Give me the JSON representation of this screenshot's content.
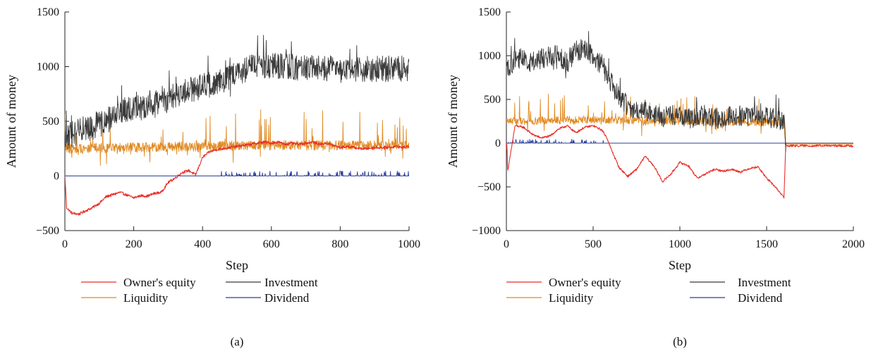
{
  "figure": {
    "panels": [
      "(a)",
      "(b)"
    ]
  },
  "chart_data": [
    {
      "type": "line",
      "panel_label": "(a)",
      "xlabel": "Step",
      "ylabel": "Amount of money",
      "xlim": [
        0,
        1000
      ],
      "ylim": [
        -500,
        1500
      ],
      "xticks": [
        0,
        200,
        400,
        600,
        800,
        1000
      ],
      "yticks": [
        -500,
        0,
        500,
        1000,
        1500
      ],
      "ytick_labels": [
        "−500",
        "0",
        "500",
        "1000",
        "1500"
      ],
      "legend_position": "bottom",
      "series": [
        {
          "name": "Owner's equity",
          "color": "#e8302a",
          "x": [
            0,
            5,
            20,
            40,
            60,
            80,
            100,
            120,
            140,
            160,
            180,
            200,
            220,
            240,
            260,
            280,
            300,
            320,
            340,
            360,
            380,
            400,
            420,
            440,
            460,
            480,
            500,
            520,
            540,
            560,
            580,
            600,
            620,
            640,
            660,
            680,
            700,
            720,
            740,
            760,
            780,
            800,
            820,
            840,
            860,
            880,
            900,
            920,
            940,
            960,
            980,
            1000
          ],
          "y": [
            0,
            -290,
            -340,
            -350,
            -320,
            -290,
            -250,
            -190,
            -170,
            -150,
            -175,
            -200,
            -180,
            -185,
            -160,
            -150,
            -60,
            -20,
            30,
            50,
            10,
            170,
            220,
            240,
            250,
            260,
            270,
            280,
            290,
            300,
            310,
            300,
            310,
            290,
            300,
            290,
            300,
            310,
            290,
            300,
            280,
            260,
            270,
            260,
            250,
            250,
            260,
            260,
            260,
            270,
            260,
            270
          ]
        },
        {
          "name": "Liquidity",
          "color": "#e08a22",
          "x": [
            0,
            200,
            400,
            600,
            800,
            1000
          ],
          "y": [
            250,
            260,
            270,
            280,
            280,
            275
          ]
        },
        {
          "name": "Investment",
          "color": "#3a3a3a",
          "x": [
            0,
            50,
            100,
            150,
            200,
            250,
            300,
            350,
            400,
            450,
            500,
            550,
            600,
            650,
            700,
            750,
            800,
            850,
            900,
            950,
            1000
          ],
          "y": [
            350,
            420,
            470,
            560,
            620,
            640,
            700,
            780,
            820,
            860,
            950,
            1000,
            1010,
            1000,
            990,
            990,
            970,
            980,
            980,
            980,
            990
          ]
        },
        {
          "name": "Dividend",
          "color": "#2a3f9a",
          "x": [
            0,
            200,
            440,
            600,
            800,
            1000
          ],
          "y": [
            0,
            0,
            0,
            0,
            0,
            0
          ]
        }
      ]
    },
    {
      "type": "line",
      "panel_label": "(b)",
      "xlabel": "Step",
      "ylabel": "Amount of money",
      "xlim": [
        0,
        2000
      ],
      "ylim": [
        -1000,
        1500
      ],
      "xticks": [
        0,
        500,
        1000,
        1500,
        2000
      ],
      "yticks": [
        -1000,
        -500,
        0,
        500,
        1000,
        1500
      ],
      "ytick_labels": [
        "−1000",
        "−500",
        "0",
        "500",
        "1000",
        "1500"
      ],
      "legend_position": "bottom",
      "series": [
        {
          "name": "Owner's equity",
          "color": "#e8302a",
          "x": [
            0,
            10,
            50,
            100,
            150,
            200,
            250,
            300,
            350,
            400,
            450,
            500,
            550,
            580,
            600,
            650,
            700,
            750,
            800,
            850,
            900,
            950,
            1000,
            1050,
            1100,
            1150,
            1200,
            1250,
            1300,
            1350,
            1400,
            1450,
            1500,
            1550,
            1600,
            1610,
            1700,
            1800,
            1900,
            2000
          ],
          "y": [
            0,
            -300,
            200,
            180,
            100,
            60,
            80,
            160,
            200,
            120,
            180,
            200,
            150,
            60,
            -50,
            -280,
            -380,
            -300,
            -150,
            -260,
            -440,
            -350,
            -220,
            -260,
            -400,
            -350,
            -300,
            -320,
            -300,
            -330,
            -290,
            -270,
            -400,
            -500,
            -620,
            -30,
            -30,
            -30,
            -30,
            -30
          ]
        },
        {
          "name": "Liquidity",
          "color": "#e08a22",
          "x": [
            0,
            500,
            1000,
            1500,
            1600,
            1610,
            2000
          ],
          "y": [
            250,
            270,
            250,
            240,
            230,
            -10,
            -10
          ]
        },
        {
          "name": "Investment",
          "color": "#3a3a3a",
          "x": [
            0,
            50,
            100,
            150,
            200,
            250,
            300,
            350,
            400,
            450,
            500,
            550,
            600,
            650,
            700,
            750,
            800,
            850,
            900,
            950,
            1000,
            1050,
            1100,
            1150,
            1200,
            1250,
            1300,
            1350,
            1400,
            1450,
            1500,
            1550,
            1600,
            1610,
            2000
          ],
          "y": [
            850,
            950,
            980,
            920,
            960,
            1000,
            1000,
            920,
            1050,
            1080,
            1000,
            900,
            700,
            550,
            420,
            380,
            380,
            320,
            300,
            320,
            300,
            280,
            300,
            320,
            280,
            300,
            310,
            320,
            300,
            320,
            300,
            280,
            250,
            0,
            0
          ]
        },
        {
          "name": "Dividend",
          "color": "#2a3f9a",
          "x": [
            0,
            550,
            1000,
            1500,
            2000
          ],
          "y": [
            0,
            0,
            0,
            0,
            0
          ]
        }
      ]
    }
  ]
}
